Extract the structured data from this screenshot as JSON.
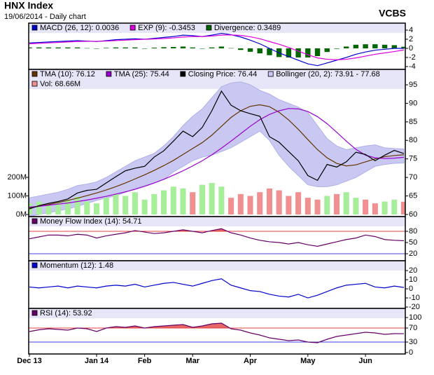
{
  "header": {
    "title": "HNX Index",
    "subtitle": "19/06/2014 - Daily chart",
    "source": "VCBS"
  },
  "chart_data": [
    {
      "type": "line",
      "ylim": [
        -4.62,
        5.54
      ],
      "yticks": [
        4,
        2,
        0,
        -2,
        -4
      ],
      "series": [
        {
          "name": "MACD (26, 12): 0.0036",
          "color": "#0000cc",
          "values": [
            1.2,
            1.3,
            1.4,
            1.5,
            1.6,
            1.7,
            1.6,
            1.5,
            1.7,
            1.9,
            2.0,
            2.1,
            2.0,
            2.2,
            2.4,
            2.6,
            2.9,
            2.8,
            2.6,
            2.9,
            3.3,
            3.0,
            2.5,
            1.8,
            1.0,
            0.0,
            -1.0,
            -1.8,
            -2.6,
            -3.4,
            -3.8,
            -3.2,
            -2.6,
            -2.0,
            -1.3,
            -0.8,
            -0.4,
            -0.2,
            0.0,
            0.0036
          ]
        },
        {
          "name": "EXP (9): -0.3453",
          "color": "#dd00dd",
          "values": [
            1.0,
            1.1,
            1.2,
            1.3,
            1.4,
            1.5,
            1.55,
            1.55,
            1.6,
            1.7,
            1.8,
            1.9,
            2.0,
            2.05,
            2.15,
            2.3,
            2.5,
            2.6,
            2.6,
            2.7,
            2.9,
            2.95,
            2.85,
            2.55,
            2.1,
            1.5,
            0.9,
            0.2,
            -0.6,
            -1.4,
            -2.1,
            -2.4,
            -2.5,
            -2.4,
            -2.1,
            -1.7,
            -1.3,
            -1.0,
            -0.7,
            -0.3453
          ]
        },
        {
          "name": "Divergence: 0.3489",
          "color": "#006600",
          "type": "bar",
          "values": [
            0.2,
            0.2,
            0.2,
            0.2,
            0.2,
            0.2,
            0.05,
            -0.05,
            0.1,
            0.2,
            0.2,
            0.2,
            0,
            0.15,
            0.25,
            0.3,
            0.4,
            0.2,
            0,
            0.2,
            0.4,
            0.05,
            -0.35,
            -0.75,
            -1.1,
            -1.5,
            -1.9,
            -2.0,
            -2.0,
            -2.0,
            -1.7,
            -0.8,
            -0.1,
            0.4,
            0.8,
            0.9,
            0.9,
            0.8,
            0.7,
            0.3489
          ]
        }
      ]
    },
    {
      "type": "line",
      "ylim": [
        59.43,
        99.16
      ],
      "yticks": [
        95,
        90,
        85,
        80,
        75,
        70,
        65,
        60
      ],
      "y2lim": [
        -11.3,
        781
      ],
      "y2ticks": [
        {
          "value": 200,
          "label": "200M"
        },
        {
          "value": 100,
          "label": "100M"
        },
        {
          "value": 0,
          "label": "0M"
        }
      ],
      "series": [
        {
          "name": "TMA (10): 76.12",
          "color": "#663300",
          "values": [
            61.8,
            62.2,
            62.7,
            63.2,
            63.8,
            64.4,
            65.1,
            65.8,
            66.6,
            67.5,
            68.5,
            69.6,
            70.7,
            71.9,
            73.2,
            74.6,
            76.2,
            77.8,
            79.4,
            81.4,
            83.8,
            86.2,
            88.0,
            89.2,
            89.6,
            89.1,
            87.6,
            85.5,
            83.0,
            80.2,
            77.5,
            75.3,
            73.8,
            73.1,
            73.4,
            74.2,
            75.0,
            75.6,
            75.9,
            76.12
          ]
        },
        {
          "name": "TMA (25): 75.44",
          "color": "#9900cc",
          "values": [
            62.0,
            62.2,
            62.5,
            62.8,
            63.1,
            63.5,
            63.9,
            64.4,
            64.9,
            65.5,
            66.1,
            66.8,
            67.6,
            68.5,
            69.5,
            70.6,
            71.8,
            73.1,
            74.5,
            76.1,
            77.9,
            79.8,
            81.8,
            83.8,
            85.6,
            87.0,
            88.0,
            88.6,
            88.5,
            87.8,
            86.4,
            84.5,
            82.2,
            79.8,
            77.6,
            76.0,
            75.3,
            75.1,
            75.2,
            75.44
          ]
        },
        {
          "name": "Closing Price: 76.44",
          "color": "#000000",
          "values": [
            61.5,
            62.4,
            63.0,
            63.5,
            64.2,
            65.8,
            66.5,
            66.8,
            68.5,
            70.2,
            71.8,
            72.5,
            73.0,
            75.5,
            77.2,
            79.8,
            82.5,
            81.0,
            83.5,
            88.0,
            93.3,
            89.5,
            88.0,
            87.2,
            86.5,
            81.0,
            79.5,
            77.0,
            74.5,
            70.5,
            69.2,
            73.5,
            72.8,
            74.2,
            76.8,
            76.2,
            74.5,
            76.0,
            77.3,
            76.44
          ]
        },
        {
          "name": "Bollinger (20, 2): 73.91 - 77.68",
          "color": "#c8c8f2",
          "type": "band",
          "upper": [
            64.5,
            65.0,
            65.5,
            66.0,
            66.8,
            67.8,
            68.2,
            68.8,
            70.0,
            71.5,
            73.0,
            74.5,
            75.5,
            76.5,
            78.5,
            81.0,
            84.0,
            86.5,
            88.5,
            91.5,
            94.5,
            95.5,
            95.8,
            95.0,
            93.5,
            92.5,
            91.0,
            90.0,
            89.0,
            87.5,
            84.0,
            80.5,
            78.5,
            77.5,
            78.0,
            78.5,
            78.8,
            78.0,
            77.8,
            77.68
          ],
          "lower": [
            59.5,
            60.0,
            60.5,
            61.0,
            61.5,
            62.2,
            63.0,
            63.8,
            64.5,
            65.0,
            66.0,
            67.0,
            67.8,
            68.5,
            69.5,
            71.5,
            73.0,
            74.5,
            75.5,
            76.0,
            77.0,
            78.0,
            79.5,
            81.0,
            82.5,
            80.0,
            76.0,
            73.0,
            70.5,
            68.0,
            67.5,
            67.5,
            68.0,
            69.0,
            70.0,
            71.5,
            73.0,
            73.5,
            73.8,
            73.91
          ]
        },
        {
          "name": "Vol: 68.66M",
          "color": "#f09090",
          "up_color": "#a6ee9a",
          "down_color": "#f09090",
          "type": "bar",
          "axis": "y2",
          "values": [
            60,
            70,
            55,
            65,
            80,
            95,
            70,
            60,
            90,
            110,
            100,
            120,
            80,
            110,
            130,
            150,
            140,
            120,
            160,
            170,
            150,
            90,
            110,
            100,
            120,
            140,
            130,
            100,
            120,
            90,
            80,
            100,
            110,
            120,
            90,
            80,
            60,
            70,
            80,
            68.66
          ]
        }
      ]
    },
    {
      "type": "line",
      "ylim": [
        1.25,
        119.4
      ],
      "yticks": [
        80,
        50,
        20
      ],
      "reference_lines": [
        {
          "value": 80,
          "color": "#e04040",
          "fill": "above"
        },
        {
          "value": 20,
          "color": "#4040e0",
          "fill": "below"
        }
      ],
      "series": [
        {
          "name": "Money Flow Index (14): 54.71",
          "color": "#660066",
          "values": [
            60,
            65,
            70,
            70,
            68,
            72,
            70,
            62,
            68,
            72,
            76,
            82,
            78,
            74,
            76,
            80,
            84,
            80,
            76,
            82,
            87,
            76,
            70,
            62,
            56,
            52,
            50,
            46,
            50,
            44,
            40,
            46,
            52,
            58,
            62,
            70,
            66,
            58,
            56,
            54.71
          ]
        }
      ]
    },
    {
      "type": "line",
      "ylim": [
        -21.5,
        30.8
      ],
      "yticks": [
        20,
        10,
        0,
        -10,
        -20
      ],
      "series": [
        {
          "name": "Momentum (12): 1.48",
          "color": "#0000cc",
          "values": [
            2,
            1,
            2,
            3,
            1,
            3,
            2,
            1,
            3,
            4,
            3,
            5,
            2,
            4,
            6,
            7,
            5,
            3,
            6,
            9,
            11,
            4,
            1,
            -2,
            -3,
            -6,
            -8,
            -9,
            -6,
            -10,
            -7,
            -3,
            1,
            4,
            5,
            6,
            2,
            1,
            3,
            1.48
          ]
        }
      ]
    },
    {
      "type": "line",
      "ylim": [
        -4,
        126
      ],
      "yticks": [
        100,
        70,
        30,
        0
      ],
      "reference_lines": [
        {
          "value": 70,
          "color": "#e04040",
          "fill": "above"
        },
        {
          "value": 30,
          "color": "#4040e0",
          "fill": "below"
        }
      ],
      "categories": [
        "Dec 13",
        null,
        null,
        null,
        null,
        null,
        null,
        "Jan 14",
        null,
        null,
        null,
        null,
        "Feb",
        null,
        null,
        null,
        null,
        "Mar",
        null,
        null,
        null,
        null,
        null,
        "Apr",
        null,
        null,
        null,
        null,
        null,
        "May",
        null,
        null,
        null,
        null,
        null,
        "Jun",
        null,
        null,
        null,
        null
      ],
      "series": [
        {
          "name": "RSI (14): 53.92",
          "color": "#660066",
          "values": [
            60,
            65,
            68,
            66,
            64,
            70,
            68,
            60,
            70,
            74,
            72,
            76,
            70,
            74,
            76,
            78,
            80,
            72,
            76,
            82,
            84,
            68,
            64,
            56,
            50,
            42,
            38,
            34,
            36,
            30,
            28,
            38,
            46,
            50,
            54,
            58,
            56,
            52,
            54,
            53.92
          ]
        }
      ]
    }
  ]
}
